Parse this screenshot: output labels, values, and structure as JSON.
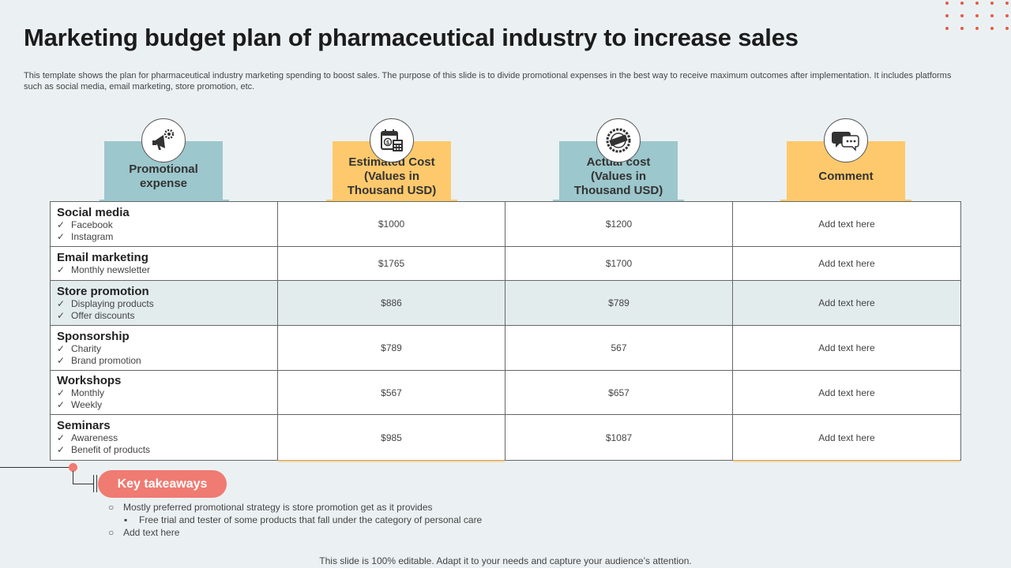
{
  "title": "Marketing budget plan of pharmaceutical industry to increase sales",
  "description": "This template shows the plan for pharmaceutical industry marketing spending to boost sales. The purpose of this slide is to divide promotional expenses in the best way to receive maximum outcomes after implementation. It includes platforms such as social media, email marketing, store promotion, etc.",
  "colors": {
    "teal": "#9cc7cc",
    "yellow": "#fdc96c",
    "accent": "#ef7b72",
    "dots": "#e55a47"
  },
  "columns": [
    {
      "label": "Promotional expense",
      "icon": "megaphone-gear-icon",
      "color": "teal"
    },
    {
      "label": "Estimated Cost (Values in Thousand USD)",
      "icon": "calendar-calculator-icon",
      "color": "yellow"
    },
    {
      "label": "Actual cost (Values in Thousand USD)",
      "icon": "actual-stamp-icon",
      "color": "teal"
    },
    {
      "label": "Comment",
      "icon": "chat-bubbles-icon",
      "color": "yellow"
    }
  ],
  "rows": [
    {
      "category": "Social media",
      "items": [
        "Facebook",
        "Instagram"
      ],
      "estimated": "$1000",
      "actual": "$1200",
      "comment": "Add text here"
    },
    {
      "category": "Email marketing",
      "items": [
        "Monthly newsletter"
      ],
      "estimated": "$1765",
      "actual": "$1700",
      "comment": "Add text here"
    },
    {
      "category": "Store promotion",
      "items": [
        "Displaying products",
        "Offer discounts"
      ],
      "estimated": "$886",
      "actual": "$789",
      "comment": "Add text here"
    },
    {
      "category": "Sponsorship",
      "items": [
        "Charity",
        "Brand promotion"
      ],
      "estimated": "$789",
      "actual": "567",
      "comment": "Add text here"
    },
    {
      "category": "Workshops",
      "items": [
        "Monthly",
        "Weekly"
      ],
      "estimated": "$567",
      "actual": "$657",
      "comment": "Add text here"
    },
    {
      "category": "Seminars",
      "items": [
        "Awareness",
        "Benefit of products"
      ],
      "estimated": "$985",
      "actual": "$1087",
      "comment": "Add text here"
    }
  ],
  "check_glyph": "✓",
  "takeaways": {
    "label": "Key takeaways",
    "items": [
      {
        "level": 1,
        "bullet": "○",
        "text": "Mostly preferred  promotional strategy is store promotion  get as it provides"
      },
      {
        "level": 2,
        "bullet": "▪",
        "text": "Free trial and tester of some products that fall under the category of personal care"
      },
      {
        "level": 1,
        "bullet": "○",
        "text": "Add text here"
      }
    ]
  },
  "footer": "This slide is 100% editable. Adapt it to your needs and capture your audience’s attention."
}
